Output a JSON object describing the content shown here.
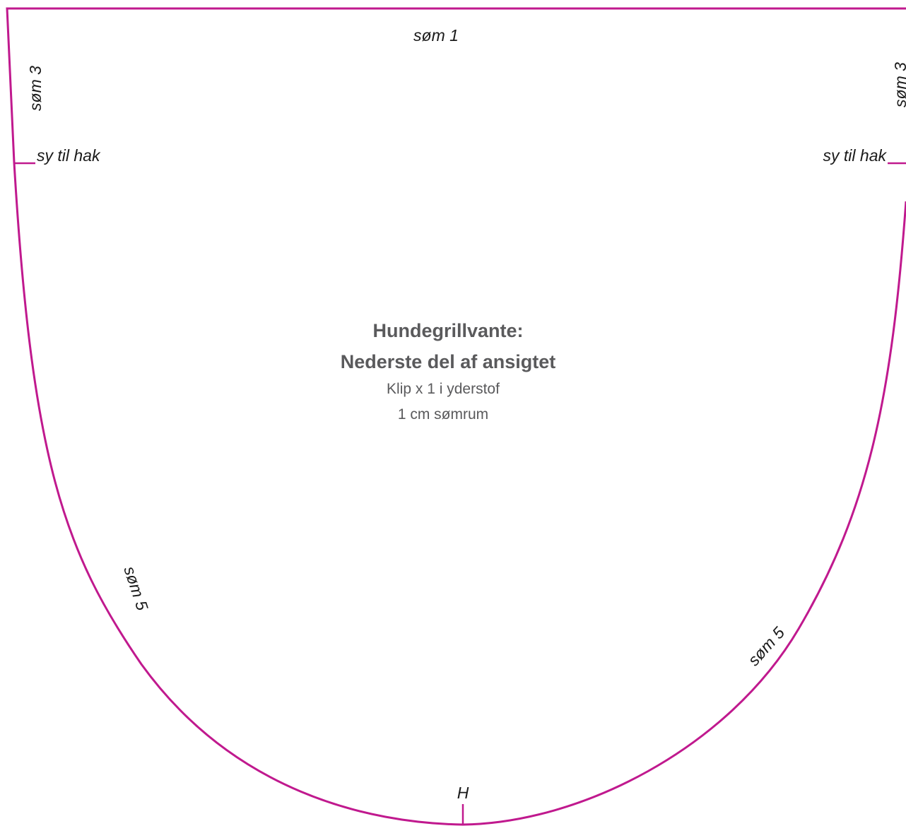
{
  "colors": {
    "outline": "#c0198e",
    "title_text": "#5a5a5c",
    "label_text": "#1a1a1a",
    "background": "#ffffff"
  },
  "pattern": {
    "title_line1": "Hundegrillvante:",
    "title_line2": "Nederste del af ansigtet",
    "instruction_cut": "Klip x 1 i yderstof",
    "instruction_seam": "1 cm sømrum"
  },
  "labels": {
    "seam_top": "søm 1",
    "seam_left_upper": "søm 3",
    "seam_right_upper": "søm 3",
    "notch_left": "sy til hak",
    "notch_right": "sy til hak",
    "seam_left_lower": "søm 5",
    "seam_right_lower": "søm 5",
    "center_mark": "H"
  }
}
